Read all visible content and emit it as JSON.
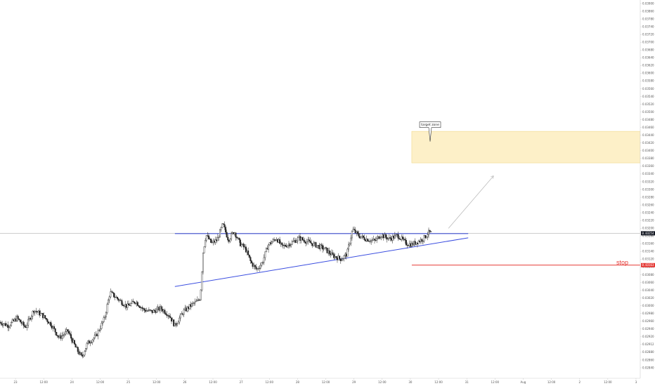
{
  "chart_data": {
    "type": "candlestick",
    "x_tick_labels": [
      "23",
      "12:00",
      "24",
      "12:00",
      "25",
      "12:00",
      "26",
      "12:00",
      "27",
      "12:00",
      "28",
      "12:00",
      "29",
      "12:00",
      "30",
      "12:00",
      "31",
      "12:00",
      "Aug",
      "12:00",
      "2",
      "12:00",
      "3"
    ],
    "y_tick_labels": [
      "0.03900",
      "0.03860",
      "0.03780",
      "0.03740",
      "0.03720",
      "0.03700",
      "0.03680",
      "0.03640",
      "0.03620",
      "0.03600",
      "0.03580",
      "0.03560",
      "0.03540",
      "0.03520",
      "0.03500",
      "0.03480",
      "0.03460",
      "0.03440",
      "0.03420",
      "0.03400",
      "0.03380",
      "0.03360",
      "0.03340",
      "0.03320",
      "0.03300",
      "0.03280",
      "0.03260",
      "0.03240",
      "0.03220",
      "0.03200",
      "0.03180",
      "0.03160",
      "0.03140",
      "0.03120",
      "0.03100",
      "0.03080",
      "0.03060",
      "0.03040",
      "0.03020",
      "0.03000",
      "0.02980",
      "0.02960",
      "0.02940",
      "0.02920",
      "0.02912",
      "0.02880",
      "0.02860",
      "0.02840"
    ],
    "ylim": [
      0.0284,
      0.0392
    ],
    "xlim": [
      0,
      22.7
    ],
    "price_tag": {
      "value": "0.03254",
      "color": "#131722"
    },
    "price_line": {
      "value": 0.03254,
      "color": "#9e9e9e"
    },
    "stop_tag": {
      "value": "0.03163",
      "color": "#e53935"
    },
    "target_zone": {
      "x_start": 14.6,
      "x_end": 22.7,
      "y_low": 0.03455,
      "y_high": 0.03545,
      "color": "#fdf0c8"
    },
    "annotations": [
      {
        "text": "target zone",
        "x": 15.25,
        "y": 0.03554
      },
      {
        "text": "stop",
        "x": 22.4,
        "y": 0.03163,
        "color": "#e53935"
      }
    ],
    "lines": [
      {
        "name": "resistance",
        "color": "#3a4de0",
        "x1": 6.2,
        "y1": 0.03253,
        "x2": 16.6,
        "y2": 0.03253
      },
      {
        "name": "support",
        "color": "#3a4de0",
        "x1": 6.2,
        "y1": 0.03102,
        "x2": 16.6,
        "y2": 0.03241
      },
      {
        "name": "stop-line",
        "color": "#e53935",
        "x1": 14.6,
        "y1": 0.03163,
        "x2": 22.7,
        "y2": 0.03163
      },
      {
        "name": "projection",
        "color": "#b5b5b5",
        "x1": 15.9,
        "y1": 0.03268,
        "x2": 17.5,
        "y2": 0.03418
      }
    ],
    "close_path": [
      [
        0,
        0.03
      ],
      [
        0.3,
        0.0299
      ],
      [
        0.6,
        0.03012
      ],
      [
        0.9,
        0.02985
      ],
      [
        1.2,
        0.03035
      ],
      [
        1.5,
        0.0302
      ],
      [
        1.8,
        0.02995
      ],
      [
        2.1,
        0.02955
      ],
      [
        2.4,
        0.02975
      ],
      [
        2.7,
        0.02925
      ],
      [
        2.9,
        0.029
      ],
      [
        3.1,
        0.0294
      ],
      [
        3.4,
        0.0296
      ],
      [
        3.7,
        0.0301
      ],
      [
        3.9,
        0.03085
      ],
      [
        4.2,
        0.03065
      ],
      [
        4.5,
        0.03045
      ],
      [
        4.8,
        0.0306
      ],
      [
        5.1,
        0.03035
      ],
      [
        5.4,
        0.0303
      ],
      [
        5.7,
        0.0304
      ],
      [
        6.0,
        0.0302
      ],
      [
        6.2,
        0.0299
      ],
      [
        6.5,
        0.0303
      ],
      [
        6.8,
        0.0305
      ],
      [
        7.0,
        0.0306
      ],
      [
        7.1,
        0.0307
      ],
      [
        7.2,
        0.032
      ],
      [
        7.3,
        0.0325
      ],
      [
        7.5,
        0.03225
      ],
      [
        7.7,
        0.03235
      ],
      [
        7.9,
        0.0328
      ],
      [
        8.1,
        0.03235
      ],
      [
        8.3,
        0.0326
      ],
      [
        8.5,
        0.03225
      ],
      [
        8.7,
        0.0321
      ],
      [
        8.9,
        0.0317
      ],
      [
        9.1,
        0.0315
      ],
      [
        9.3,
        0.0317
      ],
      [
        9.5,
        0.0322
      ],
      [
        9.8,
        0.0324
      ],
      [
        10.0,
        0.03215
      ],
      [
        10.3,
        0.03225
      ],
      [
        10.6,
        0.0324
      ],
      [
        10.9,
        0.0323
      ],
      [
        11.2,
        0.0322
      ],
      [
        11.5,
        0.0321
      ],
      [
        11.8,
        0.0319
      ],
      [
        12.1,
        0.0318
      ],
      [
        12.3,
        0.03195
      ],
      [
        12.5,
        0.03265
      ],
      [
        12.7,
        0.03248
      ],
      [
        12.9,
        0.0324
      ],
      [
        13.1,
        0.03235
      ],
      [
        13.3,
        0.03232
      ],
      [
        13.5,
        0.0325
      ],
      [
        13.8,
        0.03238
      ],
      [
        14.1,
        0.03248
      ],
      [
        14.4,
        0.03225
      ],
      [
        14.6,
        0.03222
      ],
      [
        14.8,
        0.0323
      ],
      [
        15.0,
        0.03238
      ],
      [
        15.2,
        0.03256
      ],
      [
        15.3,
        0.03254
      ]
    ]
  }
}
